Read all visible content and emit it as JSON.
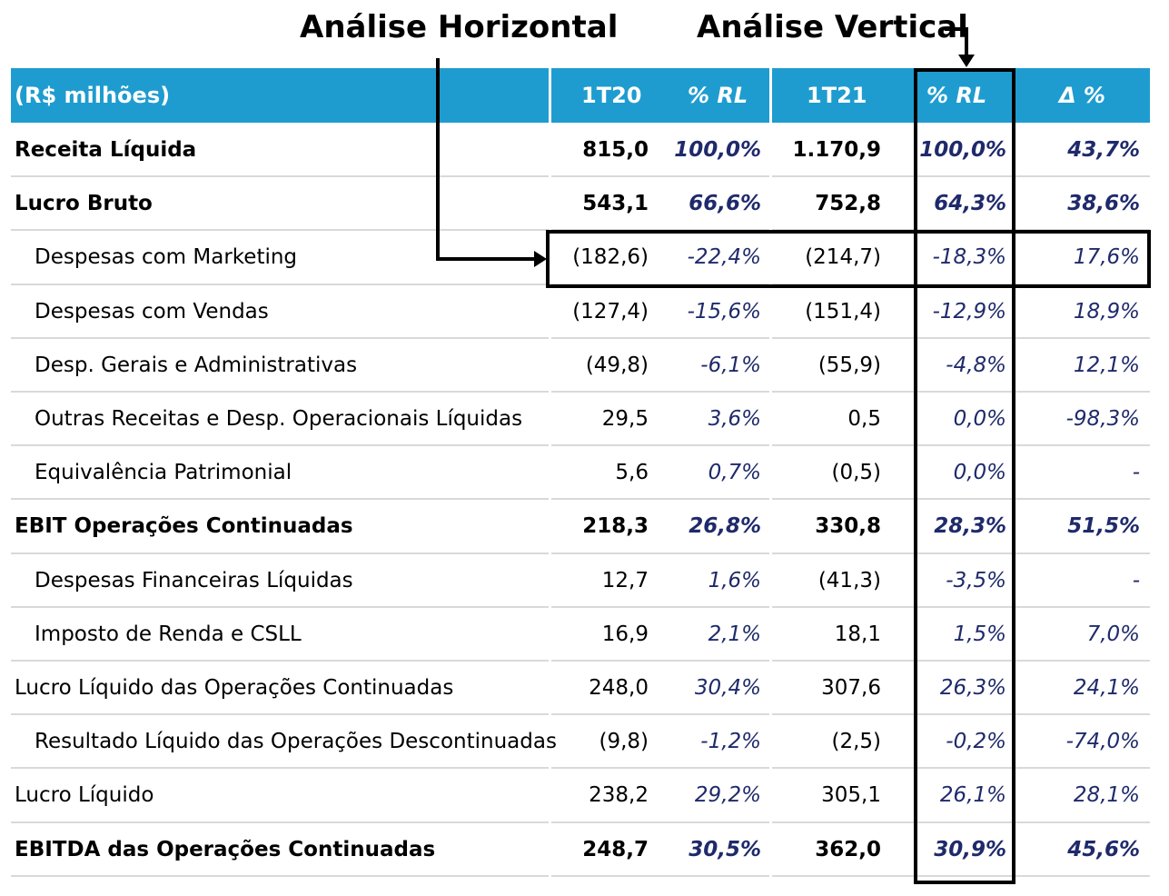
{
  "annotations": {
    "horizontal": "Análise Horizontal",
    "vertical": "Análise Vertical"
  },
  "table": {
    "headers": [
      "(R$ milhões)",
      "1T20",
      "% RL",
      "1T21",
      "% RL",
      "Δ %"
    ],
    "rows": [
      {
        "label": "Receita Líquida",
        "v20": "815,0",
        "p20": "100,0%",
        "v21": "1.170,9",
        "p21": "100,0%",
        "delta": "43,7%",
        "bold": true,
        "indent": false
      },
      {
        "label": "Lucro Bruto",
        "v20": "543,1",
        "p20": "66,6%",
        "v21": "752,8",
        "p21": "64,3%",
        "delta": "38,6%",
        "bold": true,
        "indent": false
      },
      {
        "label": "Despesas com Marketing",
        "v20": "(182,6)",
        "p20": "-22,4%",
        "v21": "(214,7)",
        "p21": "-18,3%",
        "delta": "17,6%",
        "bold": false,
        "indent": true
      },
      {
        "label": "Despesas com Vendas",
        "v20": "(127,4)",
        "p20": "-15,6%",
        "v21": "(151,4)",
        "p21": "-12,9%",
        "delta": "18,9%",
        "bold": false,
        "indent": true
      },
      {
        "label": "Desp. Gerais e Administrativas",
        "v20": "(49,8)",
        "p20": "-6,1%",
        "v21": "(55,9)",
        "p21": "-4,8%",
        "delta": "12,1%",
        "bold": false,
        "indent": true
      },
      {
        "label": "Outras Receitas e Desp. Operacionais Líquidas",
        "v20": "29,5",
        "p20": "3,6%",
        "v21": "0,5",
        "p21": "0,0%",
        "delta": "-98,3%",
        "bold": false,
        "indent": true
      },
      {
        "label": "Equivalência Patrimonial",
        "v20": "5,6",
        "p20": "0,7%",
        "v21": "(0,5)",
        "p21": "0,0%",
        "delta": "-",
        "bold": false,
        "indent": true
      },
      {
        "label": "EBIT Operações Continuadas",
        "v20": "218,3",
        "p20": "26,8%",
        "v21": "330,8",
        "p21": "28,3%",
        "delta": "51,5%",
        "bold": true,
        "indent": false
      },
      {
        "label": "Despesas Financeiras Líquidas",
        "v20": "12,7",
        "p20": "1,6%",
        "v21": "(41,3)",
        "p21": "-3,5%",
        "delta": "-",
        "bold": false,
        "indent": true
      },
      {
        "label": "Imposto de Renda e CSLL",
        "v20": "16,9",
        "p20": "2,1%",
        "v21": "18,1",
        "p21": "1,5%",
        "delta": "7,0%",
        "bold": false,
        "indent": true
      },
      {
        "label": "Lucro Líquido das Operações Continuadas",
        "v20": "248,0",
        "p20": "30,4%",
        "v21": "307,6",
        "p21": "26,3%",
        "delta": "24,1%",
        "bold": false,
        "indent": false
      },
      {
        "label": "Resultado Líquido das Operações Descontinuadas",
        "v20": "(9,8)",
        "p20": "-1,2%",
        "v21": "(2,5)",
        "p21": "-0,2%",
        "delta": "-74,0%",
        "bold": false,
        "indent": true
      },
      {
        "label": "Lucro Líquido",
        "v20": "238,2",
        "p20": "29,2%",
        "v21": "305,1",
        "p21": "26,1%",
        "delta": "28,1%",
        "bold": false,
        "indent": false
      },
      {
        "label": "EBITDA das Operações Continuadas",
        "v20": "248,7",
        "p20": "30,5%",
        "v21": "362,0",
        "p21": "30,9%",
        "delta": "45,6%",
        "bold": true,
        "indent": false
      }
    ]
  },
  "colors": {
    "header_bg": "#1f9ccf",
    "pct_text": "#1f2a6b",
    "divider": "#d9d9d9"
  }
}
